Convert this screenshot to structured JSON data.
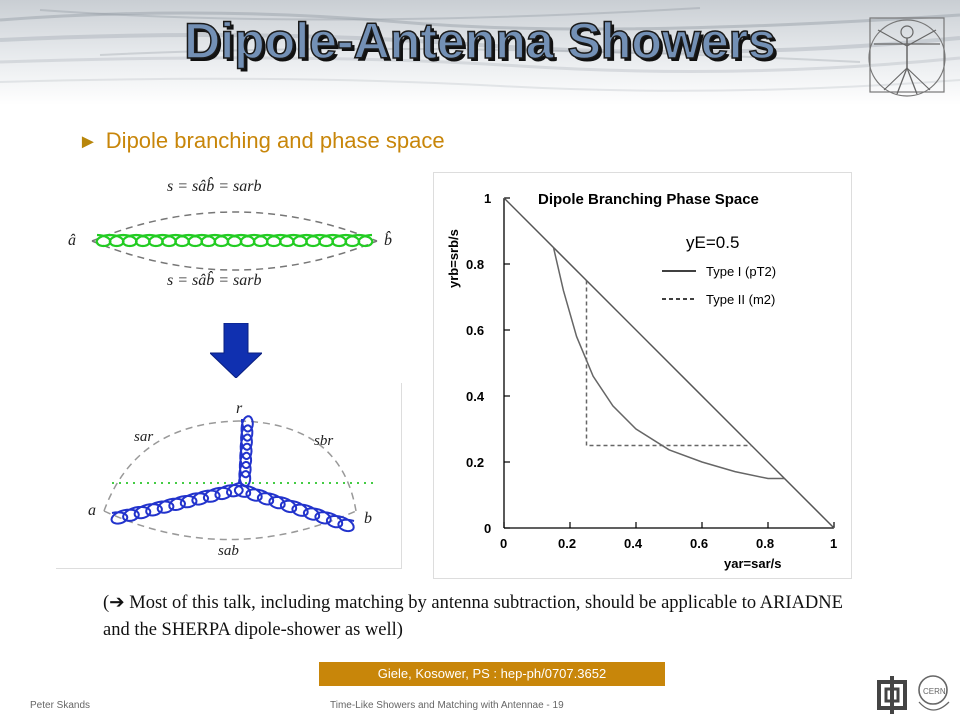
{
  "slide": {
    "title": "Dipole-Antenna Showers",
    "bullet": "Dipole branching and phase space",
    "note": "(➔ Most of this talk, including matching by antenna subtraction, should be applicable to ARIADNE and the SHERPA dipole-shower as well)",
    "citation": "Giele, Kosower, PS : hep-ph/0707.3652",
    "footer_author": "Peter Skands",
    "footer_title": "Time-Like Showers and Matching with Antennae - 19"
  },
  "diagram_top": {
    "top_label": "s = sâb̂ = sarb",
    "bottom_label": "s = sâb̂ = sarb",
    "left_end": "â",
    "right_end": "b̂"
  },
  "diagram_bottom": {
    "r": "r",
    "a": "a",
    "b": "b",
    "sar": "sar",
    "sbr": "sbr",
    "sab": "sab"
  },
  "chart_data": {
    "type": "line",
    "title": "Dipole Branching Phase Space",
    "xlabel": "yar=sar/s",
    "ylabel": "yrb=srb/s",
    "annotation": "yE=0.5",
    "xlim": [
      0,
      1
    ],
    "ylim": [
      0,
      1
    ],
    "xticks": [
      "0",
      "0.2",
      "0.4",
      "0.6",
      "0.8",
      "1"
    ],
    "yticks": [
      "0",
      "0.2",
      "0.4",
      "0.6",
      "0.8",
      "1"
    ],
    "series": [
      {
        "name": "Type I (pT2)",
        "style": "solid",
        "x": [
          0.15,
          0.18,
          0.22,
          0.27,
          0.33,
          0.4,
          0.5,
          0.6,
          0.7,
          0.8,
          0.85
        ],
        "y": [
          0.85,
          0.72,
          0.58,
          0.46,
          0.37,
          0.3,
          0.237,
          0.2,
          0.171,
          0.15,
          0.15
        ]
      },
      {
        "name": "Type II (m2)",
        "style": "dashed",
        "x": [
          0.25,
          0.25,
          0.75
        ],
        "y": [
          0.75,
          0.25,
          0.25
        ]
      }
    ],
    "boundary": {
      "x": [
        0,
        1
      ],
      "y": [
        1,
        0
      ]
    }
  }
}
